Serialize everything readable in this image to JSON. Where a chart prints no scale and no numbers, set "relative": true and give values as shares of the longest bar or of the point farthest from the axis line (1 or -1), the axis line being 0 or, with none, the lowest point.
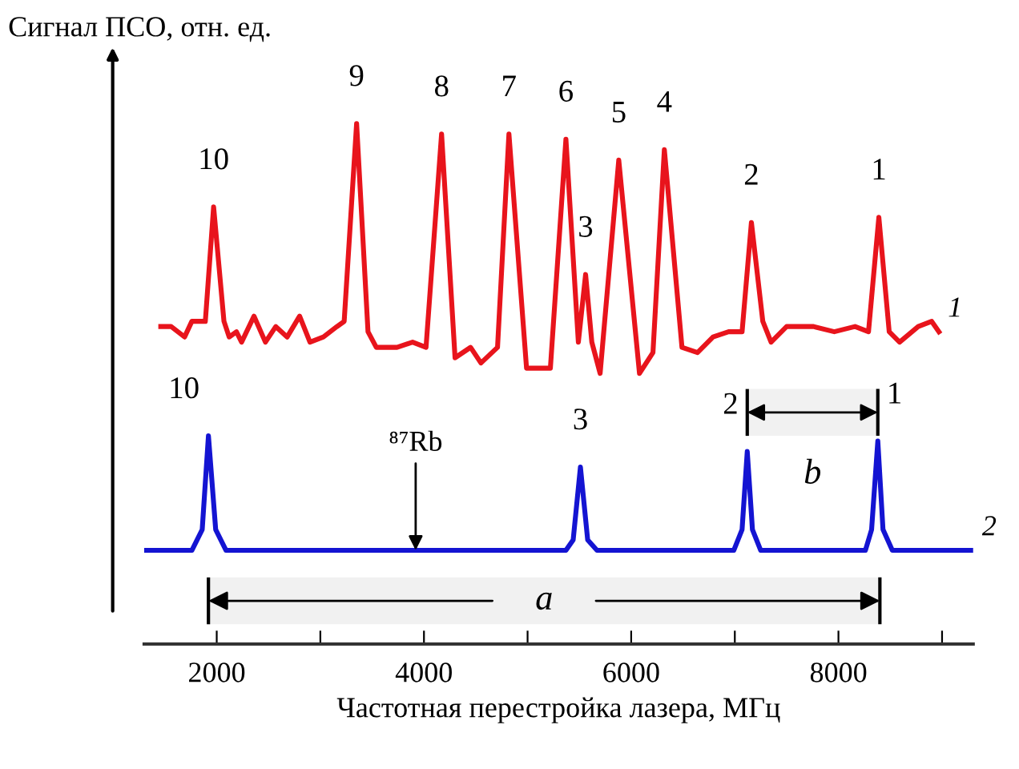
{
  "chart_data": {
    "type": "line",
    "relative": true,
    "xlabel": "Частотная перестройка лазера, МГц",
    "ylabel": "Сигнал ПСО, отн. ед.",
    "xlim": [
      1300,
      9300
    ],
    "xticks": [
      2000,
      {
        "value": 3000,
        "label": null
      },
      4000,
      {
        "value": 5000,
        "label": null
      },
      6000,
      {
        "value": 7000,
        "label": null
      },
      8000,
      {
        "value": 9000,
        "label": null
      }
    ],
    "series": [
      {
        "name": "1",
        "color": "#e8141c",
        "x": [
          1460,
          1560,
          1690,
          1760,
          1890,
          1970,
          2070,
          2120,
          2190,
          2240,
          2360,
          2470,
          2570,
          2680,
          2800,
          2900,
          3030,
          3160,
          3230,
          3350,
          3460,
          3540,
          3740,
          3890,
          4020,
          4170,
          4300,
          4450,
          4550,
          4710,
          4820,
          4990,
          5220,
          5370,
          5490,
          5560,
          5620,
          5700,
          5880,
          6080,
          6210,
          6320,
          6490,
          6640,
          6790,
          6940,
          7070,
          7160,
          7270,
          7350,
          7500,
          7760,
          7960,
          8160,
          8290,
          8390,
          8490,
          8590,
          8770,
          8900,
          8970
        ],
        "values": [
          0.61,
          0.61,
          0.59,
          0.62,
          0.62,
          0.84,
          0.62,
          0.59,
          0.6,
          0.58,
          0.63,
          0.58,
          0.61,
          0.59,
          0.63,
          0.58,
          0.59,
          0.61,
          0.62,
          1.0,
          0.6,
          0.57,
          0.57,
          0.58,
          0.57,
          0.98,
          0.55,
          0.57,
          0.54,
          0.57,
          0.98,
          0.53,
          0.53,
          0.97,
          0.58,
          0.71,
          0.58,
          0.52,
          0.93,
          0.52,
          0.56,
          0.95,
          0.57,
          0.56,
          0.59,
          0.6,
          0.6,
          0.81,
          0.62,
          0.58,
          0.61,
          0.61,
          0.6,
          0.61,
          0.6,
          0.82,
          0.6,
          0.58,
          0.61,
          0.62,
          0.6
        ]
      },
      {
        "name": "2",
        "color": "#1414d2",
        "x": [
          1300,
          1760,
          1860,
          1920,
          1990,
          2090,
          3030,
          3080,
          4300,
          5320,
          5370,
          5440,
          5510,
          5580,
          5670,
          6990,
          7070,
          7120,
          7170,
          7250,
          8260,
          8320,
          8380,
          8430,
          8520,
          9300
        ],
        "values": [
          0.18,
          0.18,
          0.22,
          0.4,
          0.22,
          0.18,
          0.18,
          0.18,
          0.18,
          0.18,
          0.18,
          0.2,
          0.34,
          0.2,
          0.18,
          0.18,
          0.22,
          0.37,
          0.22,
          0.18,
          0.18,
          0.22,
          0.39,
          0.22,
          0.18,
          0.18
        ]
      }
    ],
    "annotations": [
      {
        "text": "10",
        "x": 1970,
        "y": 0.84
      },
      {
        "text": "9",
        "x": 3350,
        "y": 1.0
      },
      {
        "text": "8",
        "x": 4170,
        "y": 0.98
      },
      {
        "text": "7",
        "x": 4820,
        "y": 0.98
      },
      {
        "text": "6",
        "x": 5370,
        "y": 0.97
      },
      {
        "text": "5",
        "x": 5880,
        "y": 0.93
      },
      {
        "text": "4",
        "x": 6320,
        "y": 0.95
      },
      {
        "text": "3",
        "x": 5560,
        "y": 0.71
      },
      {
        "text": "2",
        "x": 7160,
        "y": 0.81
      },
      {
        "text": "1",
        "x": 8390,
        "y": 0.82
      },
      {
        "text": "10",
        "x": 1920,
        "y": 0.4
      },
      {
        "text": "3",
        "x": 5510,
        "y": 0.34
      },
      {
        "text": "2",
        "x": 7120,
        "y": 0.37
      },
      {
        "text": "1",
        "x": 8380,
        "y": 0.39
      },
      {
        "text": "⁸⁷Rb",
        "x": 3920,
        "y": 0.18
      }
    ],
    "bands": [
      {
        "axis": "x",
        "from": 1920,
        "to": 8400,
        "label": "a"
      },
      {
        "axis": "x",
        "from": 7120,
        "to": 8380,
        "label": "b"
      }
    ]
  }
}
